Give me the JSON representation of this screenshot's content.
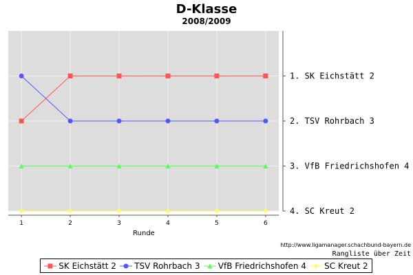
{
  "chart_data": {
    "type": "line",
    "title": "D-Klasse",
    "subtitle": "2008/2009",
    "xlabel": "Runde",
    "ylabel": "",
    "x": [
      1,
      2,
      3,
      4,
      5,
      6
    ],
    "y_categories": [
      "1. SK Eichstätt 2",
      "2. TSV Rohrbach 3",
      "3. VfB Friedrichshofen 4",
      "4. SC Kreut 2"
    ],
    "ylim": [
      0.0,
      4.0
    ],
    "y_inverted": true,
    "grid": true,
    "legend_position": "bottom",
    "series": [
      {
        "name": "SK Eichstätt 2",
        "values": [
          2,
          1,
          1,
          1,
          1,
          1
        ],
        "color": "#ff5555",
        "marker": "square"
      },
      {
        "name": "TSV Rohrbach 3",
        "values": [
          1,
          2,
          2,
          2,
          2,
          2
        ],
        "color": "#5555ff",
        "marker": "circle"
      },
      {
        "name": "VfB Friedrichshofen 4",
        "values": [
          3,
          3,
          3,
          3,
          3,
          3
        ],
        "color": "#55ff55",
        "marker": "triangle"
      },
      {
        "name": "SC Kreut 2",
        "values": [
          4,
          4,
          4,
          4,
          4,
          4
        ],
        "color": "#ffff55",
        "marker": "diamond"
      }
    ]
  },
  "footer": {
    "url": "http://www.ligamanager.schachbund-bayern.de",
    "caption": "Rangliste über Zeit"
  },
  "colors": {
    "plot_background": "#dddddd",
    "grid": "#f2f2f2"
  }
}
